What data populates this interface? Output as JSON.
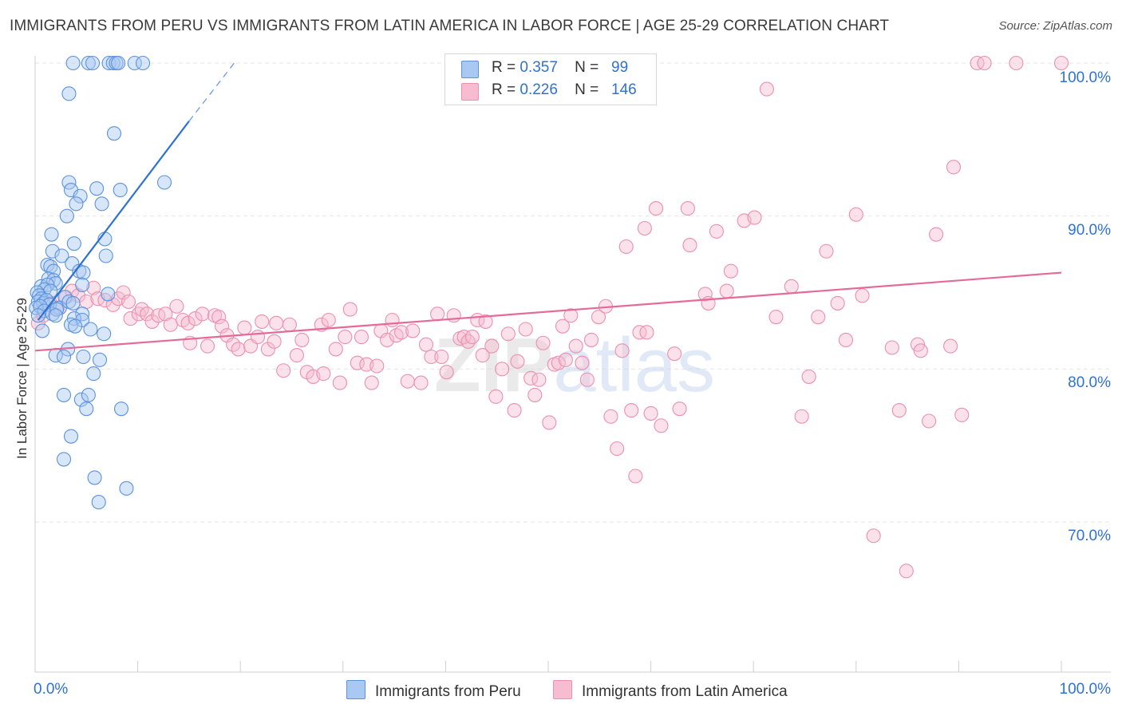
{
  "title": "IMMIGRANTS FROM PERU VS IMMIGRANTS FROM LATIN AMERICA IN LABOR FORCE | AGE 25-29 CORRELATION CHART",
  "source": "Source: ZipAtlas.com",
  "legend": {
    "r_label": "R =",
    "n_label": "N =",
    "peru": {
      "r": "0.357",
      "n": "99"
    },
    "latin": {
      "r": "0.226",
      "n": "146"
    }
  },
  "bottom_legend": {
    "peru": "Immigrants from Peru",
    "latin": "Immigrants from Latin America"
  },
  "colors": {
    "peru_fill": "#a9c8f2",
    "peru_stroke": "#5b93dd",
    "peru_line": "#2e72d2",
    "latin_fill": "#f7bcd0",
    "latin_stroke": "#ec8fb0",
    "latin_line": "#e56a98",
    "tick_text": "#2e72d2",
    "grid": "#e6e6e6"
  },
  "chart_data": {
    "type": "scatter",
    "ylabel": "In Labor Force | Age 25-29",
    "xlim": [
      0,
      100
    ],
    "ylim": [
      60,
      100
    ],
    "x_tick_labels": [
      "0.0%",
      "100.0%"
    ],
    "y_ticks": [
      70,
      80,
      90,
      100
    ],
    "y_tick_labels": [
      "70.0%",
      "80.0%",
      "90.0%",
      "100.0%"
    ],
    "grid": "horizontal dashed",
    "watermark": "ZIPatlas",
    "series": [
      {
        "name": "Immigrants from Peru",
        "trend": {
          "x0": 0.3,
          "y0": 83.2,
          "x1": 15.0,
          "y1": 96.2,
          "dash_to_x": 19.4,
          "dash_to_y": 100.0
        },
        "points": [
          [
            3.7,
            100
          ],
          [
            5.2,
            100
          ],
          [
            5.6,
            100
          ],
          [
            7.2,
            100
          ],
          [
            7.6,
            100
          ],
          [
            7.9,
            100
          ],
          [
            8.1,
            100
          ],
          [
            9.7,
            100
          ],
          [
            10.5,
            100
          ],
          [
            3.3,
            98.0
          ],
          [
            7.7,
            95.4
          ],
          [
            3.3,
            92.2
          ],
          [
            12.6,
            92.2
          ],
          [
            3.5,
            91.7
          ],
          [
            6.0,
            91.8
          ],
          [
            8.3,
            91.7
          ],
          [
            4.4,
            91.3
          ],
          [
            4.0,
            90.8
          ],
          [
            6.5,
            90.8
          ],
          [
            3.1,
            90.0
          ],
          [
            1.6,
            88.8
          ],
          [
            6.8,
            88.5
          ],
          [
            3.8,
            88.2
          ],
          [
            1.7,
            87.7
          ],
          [
            2.6,
            87.4
          ],
          [
            6.9,
            87.4
          ],
          [
            3.6,
            86.9
          ],
          [
            1.2,
            86.8
          ],
          [
            1.5,
            86.7
          ],
          [
            4.3,
            86.4
          ],
          [
            1.8,
            86.4
          ],
          [
            4.7,
            86.3
          ],
          [
            1.3,
            85.9
          ],
          [
            1.8,
            85.8
          ],
          [
            2.0,
            85.6
          ],
          [
            4.6,
            85.5
          ],
          [
            0.6,
            85.4
          ],
          [
            1.2,
            85.5
          ],
          [
            0.9,
            85.2
          ],
          [
            1.5,
            85.1
          ],
          [
            0.2,
            85.0
          ],
          [
            0.4,
            84.8
          ],
          [
            0.6,
            84.6
          ],
          [
            2.9,
            84.7
          ],
          [
            7.1,
            84.9
          ],
          [
            0.3,
            84.4
          ],
          [
            0.8,
            84.3
          ],
          [
            1.1,
            84.5
          ],
          [
            1.4,
            84.2
          ],
          [
            2.4,
            84.0
          ],
          [
            3.3,
            84.4
          ],
          [
            3.7,
            84.3
          ],
          [
            0.1,
            84.0
          ],
          [
            0.5,
            84.1
          ],
          [
            0.9,
            83.8
          ],
          [
            1.7,
            83.6
          ],
          [
            2.1,
            83.9
          ],
          [
            4.6,
            83.6
          ],
          [
            0.3,
            83.5
          ],
          [
            2.0,
            83.5
          ],
          [
            3.8,
            83.3
          ],
          [
            4.6,
            83.2
          ],
          [
            3.5,
            82.9
          ],
          [
            3.9,
            82.8
          ],
          [
            5.4,
            82.6
          ],
          [
            0.7,
            82.5
          ],
          [
            6.7,
            82.3
          ],
          [
            3.2,
            81.3
          ],
          [
            2.0,
            80.9
          ],
          [
            2.8,
            80.8
          ],
          [
            4.7,
            80.8
          ],
          [
            6.3,
            80.6
          ],
          [
            5.7,
            79.7
          ],
          [
            2.8,
            78.3
          ],
          [
            4.5,
            78.0
          ],
          [
            5.2,
            78.3
          ],
          [
            5.0,
            77.4
          ],
          [
            8.4,
            77.4
          ],
          [
            3.5,
            75.6
          ],
          [
            2.8,
            74.1
          ],
          [
            5.8,
            72.9
          ],
          [
            8.9,
            72.2
          ],
          [
            6.2,
            71.3
          ]
        ]
      },
      {
        "name": "Immigrants from Latin America",
        "trend": {
          "x0": 0.0,
          "y0": 81.2,
          "x1": 100.0,
          "y1": 86.3
        },
        "points": [
          [
            0.3,
            83.0
          ],
          [
            0.8,
            83.5
          ],
          [
            1.5,
            84.3
          ],
          [
            2.2,
            84.0
          ],
          [
            3.0,
            84.7
          ],
          [
            3.6,
            85.1
          ],
          [
            4.2,
            84.8
          ],
          [
            5.0,
            84.4
          ],
          [
            5.7,
            85.3
          ],
          [
            6.1,
            84.6
          ],
          [
            6.8,
            84.5
          ],
          [
            7.6,
            84.2
          ],
          [
            8.1,
            84.6
          ],
          [
            8.6,
            85.0
          ],
          [
            9.1,
            84.4
          ],
          [
            9.3,
            83.3
          ],
          [
            10.1,
            83.6
          ],
          [
            10.4,
            83.9
          ],
          [
            10.9,
            83.6
          ],
          [
            11.4,
            83.1
          ],
          [
            12.0,
            83.5
          ],
          [
            12.7,
            83.6
          ],
          [
            13.2,
            82.9
          ],
          [
            13.8,
            84.1
          ],
          [
            14.4,
            83.2
          ],
          [
            14.9,
            83.0
          ],
          [
            15.1,
            81.7
          ],
          [
            15.6,
            83.3
          ],
          [
            16.3,
            83.6
          ],
          [
            16.8,
            81.5
          ],
          [
            17.5,
            83.5
          ],
          [
            17.9,
            83.4
          ],
          [
            18.2,
            82.8
          ],
          [
            18.7,
            82.2
          ],
          [
            19.3,
            81.6
          ],
          [
            19.8,
            81.3
          ],
          [
            20.4,
            82.7
          ],
          [
            21.0,
            81.5
          ],
          [
            21.7,
            82.1
          ],
          [
            22.1,
            83.1
          ],
          [
            22.7,
            81.3
          ],
          [
            23.3,
            81.8
          ],
          [
            23.5,
            83.0
          ],
          [
            24.2,
            79.9
          ],
          [
            24.8,
            82.9
          ],
          [
            25.5,
            80.9
          ],
          [
            26.0,
            81.9
          ],
          [
            26.5,
            79.8
          ],
          [
            27.1,
            79.5
          ],
          [
            27.9,
            82.9
          ],
          [
            28.1,
            79.7
          ],
          [
            28.6,
            83.2
          ],
          [
            29.3,
            81.3
          ],
          [
            29.7,
            79.1
          ],
          [
            30.2,
            82.1
          ],
          [
            30.7,
            83.9
          ],
          [
            31.4,
            80.4
          ],
          [
            31.8,
            82.1
          ],
          [
            32.3,
            80.3
          ],
          [
            32.8,
            79.1
          ],
          [
            33.3,
            80.2
          ],
          [
            33.7,
            82.5
          ],
          [
            34.3,
            81.9
          ],
          [
            34.8,
            83.2
          ],
          [
            35.2,
            82.2
          ],
          [
            35.7,
            82.4
          ],
          [
            36.3,
            79.2
          ],
          [
            36.8,
            82.5
          ],
          [
            37.6,
            79.1
          ],
          [
            38.1,
            81.6
          ],
          [
            38.6,
            80.8
          ],
          [
            39.2,
            83.6
          ],
          [
            39.6,
            80.8
          ],
          [
            40.1,
            79.8
          ],
          [
            40.8,
            83.5
          ],
          [
            41.4,
            82.0
          ],
          [
            41.8,
            82.1
          ],
          [
            42.2,
            81.8
          ],
          [
            42.6,
            82.1
          ],
          [
            43.1,
            83.2
          ],
          [
            43.6,
            80.9
          ],
          [
            43.9,
            83.1
          ],
          [
            44.5,
            81.5
          ],
          [
            44.9,
            78.2
          ],
          [
            45.5,
            80.0
          ],
          [
            46.1,
            82.3
          ],
          [
            46.7,
            77.3
          ],
          [
            47.0,
            80.5
          ],
          [
            47.8,
            82.6
          ],
          [
            48.3,
            79.4
          ],
          [
            48.7,
            78.3
          ],
          [
            49.1,
            79.3
          ],
          [
            49.5,
            81.7
          ],
          [
            50.1,
            76.5
          ],
          [
            50.6,
            80.3
          ],
          [
            51.0,
            80.4
          ],
          [
            51.4,
            82.8
          ],
          [
            51.7,
            80.6
          ],
          [
            52.2,
            83.5
          ],
          [
            52.7,
            81.5
          ],
          [
            53.3,
            80.4
          ],
          [
            53.8,
            79.3
          ],
          [
            54.2,
            81.9
          ],
          [
            54.9,
            83.4
          ],
          [
            55.6,
            84.1
          ],
          [
            56.1,
            76.9
          ],
          [
            56.7,
            74.8
          ],
          [
            57.2,
            81.2
          ],
          [
            57.6,
            88.0
          ],
          [
            58.1,
            77.3
          ],
          [
            58.5,
            73.0
          ],
          [
            58.9,
            82.4
          ],
          [
            59.4,
            89.2
          ],
          [
            59.6,
            82.4
          ],
          [
            60.0,
            77.1
          ],
          [
            60.5,
            90.5
          ],
          [
            61.0,
            76.3
          ],
          [
            62.3,
            81.0
          ],
          [
            62.8,
            77.4
          ],
          [
            63.6,
            90.5
          ],
          [
            63.8,
            88.1
          ],
          [
            65.3,
            84.9
          ],
          [
            65.6,
            84.3
          ],
          [
            66.4,
            89.0
          ],
          [
            67.4,
            85.1
          ],
          [
            67.8,
            86.4
          ],
          [
            69.1,
            89.7
          ],
          [
            70.1,
            89.9
          ],
          [
            71.3,
            98.3
          ],
          [
            72.2,
            83.4
          ],
          [
            73.7,
            85.4
          ],
          [
            74.7,
            76.9
          ],
          [
            75.4,
            79.5
          ],
          [
            76.3,
            83.4
          ],
          [
            77.1,
            87.7
          ],
          [
            78.2,
            84.3
          ],
          [
            79.0,
            81.9
          ],
          [
            80.0,
            90.1
          ],
          [
            80.6,
            84.8
          ],
          [
            81.7,
            69.1
          ],
          [
            83.5,
            81.4
          ],
          [
            84.2,
            77.3
          ],
          [
            84.9,
            66.8
          ],
          [
            86.0,
            81.6
          ],
          [
            86.3,
            81.2
          ],
          [
            87.1,
            76.6
          ],
          [
            87.8,
            88.8
          ],
          [
            89.2,
            81.5
          ],
          [
            89.5,
            93.2
          ],
          [
            90.3,
            77.0
          ],
          [
            91.8,
            100
          ],
          [
            92.5,
            100
          ],
          [
            95.6,
            100
          ],
          [
            100,
            100
          ]
        ]
      }
    ]
  }
}
